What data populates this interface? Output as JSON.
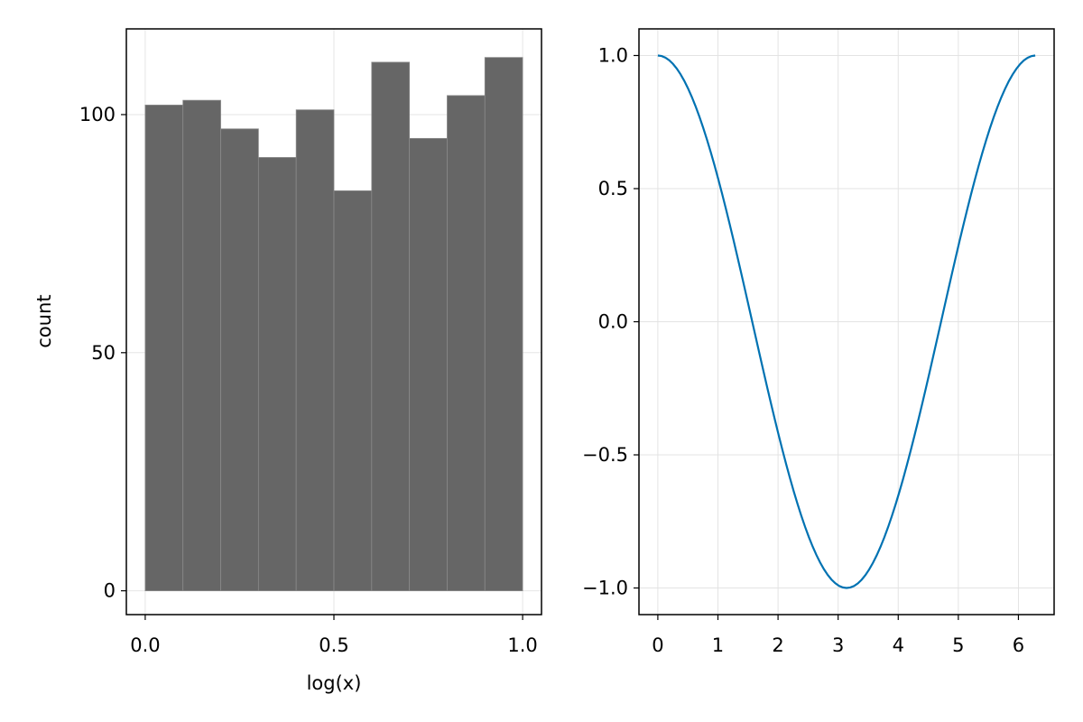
{
  "chart_data": [
    {
      "type": "bar",
      "title": "",
      "xlabel": "log(x)",
      "ylabel": "count",
      "bin_edges": [
        0.0,
        0.1,
        0.2,
        0.3,
        0.4,
        0.5,
        0.6,
        0.7,
        0.8,
        0.9,
        1.0
      ],
      "values": [
        102,
        103,
        97,
        91,
        101,
        84,
        111,
        95,
        104,
        112
      ],
      "xlim": [
        -0.05,
        1.05
      ],
      "ylim": [
        -5,
        118
      ],
      "xticks": [
        0.0,
        0.5,
        1.0
      ],
      "xtick_labels": [
        "0.0",
        "0.5",
        "1.0"
      ],
      "yticks": [
        0,
        50,
        100
      ],
      "ytick_labels": [
        "0",
        "50",
        "100"
      ],
      "grid": true,
      "color": "#666666",
      "bar_edge_color": "#8a8a8a"
    },
    {
      "type": "line",
      "title": "",
      "xlabel": "",
      "ylabel": "",
      "function": "cos(x)",
      "x_range": [
        0,
        6.28
      ],
      "sample_count": 101,
      "xlim": [
        -0.314,
        6.594
      ],
      "ylim": [
        -1.1,
        1.1
      ],
      "xticks": [
        0,
        1,
        2,
        3,
        4,
        5,
        6
      ],
      "xtick_labels": [
        "0",
        "1",
        "2",
        "3",
        "4",
        "5",
        "6"
      ],
      "yticks": [
        -1.0,
        -0.5,
        0.0,
        0.5,
        1.0
      ],
      "ytick_labels": [
        "−1.0",
        "−0.5",
        "0.0",
        "0.5",
        "1.0"
      ],
      "grid": true,
      "series": [
        {
          "color": "#0072b2"
        }
      ]
    }
  ]
}
